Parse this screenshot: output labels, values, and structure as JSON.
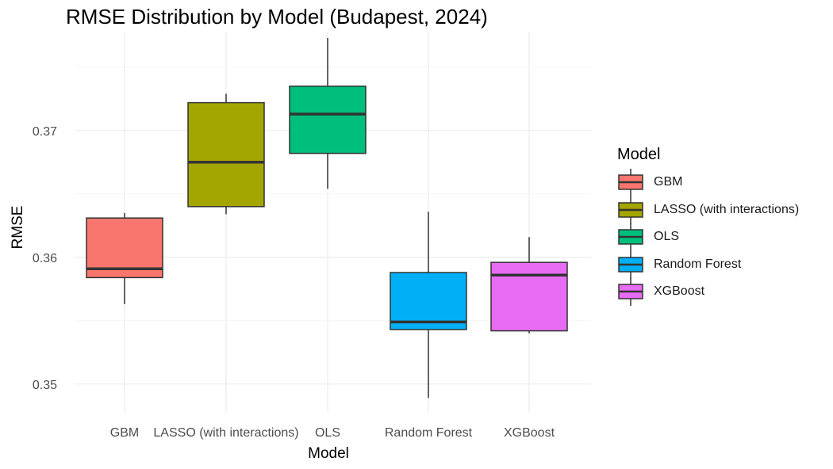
{
  "chart_data": {
    "type": "boxplot",
    "title": "RMSE Distribution by Model (Budapest, 2024)",
    "xlabel": "Model",
    "ylabel": "RMSE",
    "ylim": [
      0.3478,
      0.3778
    ],
    "yticks": [
      0.35,
      0.36,
      0.37
    ],
    "ytick_labels": [
      "0.35",
      "0.36",
      "0.37"
    ],
    "grid": true,
    "legend_title": "Model",
    "legend_position": "right",
    "categories": [
      "GBM",
      "LASSO (with interactions)",
      "OLS",
      "Random Forest",
      "XGBoost"
    ],
    "series": [
      {
        "name": "GBM",
        "color": "#F8766D",
        "min": 0.3563,
        "q1": 0.3584,
        "median": 0.3591,
        "q3": 0.3631,
        "max": 0.3635
      },
      {
        "name": "LASSO (with interactions)",
        "color": "#A3A500",
        "min": 0.3634,
        "q1": 0.364,
        "median": 0.3675,
        "q3": 0.3722,
        "max": 0.3729
      },
      {
        "name": "OLS",
        "color": "#00BF7D",
        "min": 0.3654,
        "q1": 0.3682,
        "median": 0.3713,
        "q3": 0.3735,
        "max": 0.3773
      },
      {
        "name": "Random Forest",
        "color": "#00B0F6",
        "min": 0.3489,
        "q1": 0.3543,
        "median": 0.3549,
        "q3": 0.3588,
        "max": 0.3636
      },
      {
        "name": "XGBoost",
        "color": "#E76BF3",
        "min": 0.354,
        "q1": 0.3542,
        "median": 0.3586,
        "q3": 0.3596,
        "max": 0.3616
      }
    ]
  }
}
